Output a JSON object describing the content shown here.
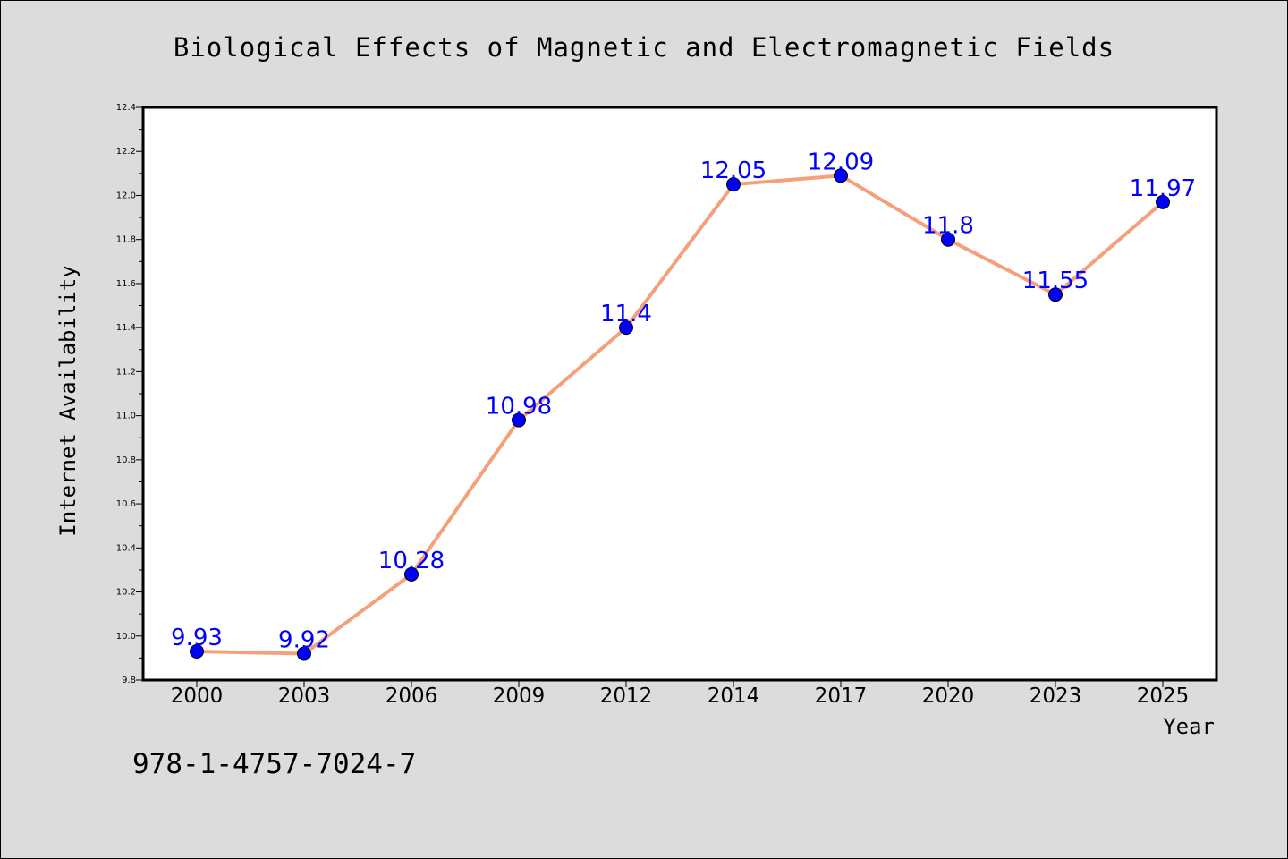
{
  "chart_data": {
    "type": "line",
    "title": "Biological Effects of Magnetic and Electromagnetic Fields",
    "xlabel": "Year",
    "ylabel": "Internet Availability",
    "categories": [
      "2000",
      "2003",
      "2006",
      "2009",
      "2012",
      "2014",
      "2017",
      "2020",
      "2023",
      "2025"
    ],
    "values": [
      9.93,
      9.92,
      10.28,
      10.98,
      11.4,
      12.05,
      12.09,
      11.8,
      11.55,
      11.97
    ],
    "data_labels": [
      "9.93",
      "9.92",
      "10.28",
      "10.98",
      "11.4",
      "12.05",
      "12.09",
      "11.8",
      "11.55",
      "11.97"
    ],
    "ylim": [
      9.8,
      12.4
    ],
    "yticks": [
      "9.8",
      "10.0",
      "10.2",
      "10.4",
      "10.6",
      "10.8",
      "11.0",
      "11.2",
      "11.4",
      "11.6",
      "11.8",
      "12.0",
      "12.2",
      "12.4"
    ],
    "grid": false,
    "legend": "none",
    "colors": {
      "line": "#f4a07a",
      "marker": "#0000ff",
      "label": "#0000ff",
      "background": "#dcdcdc",
      "plot_background": "#ffffff"
    }
  },
  "footer": {
    "isbn": "978-1-4757-7024-7"
  }
}
